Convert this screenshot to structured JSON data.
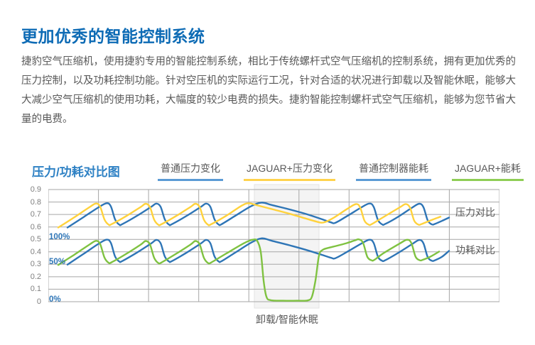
{
  "theme": {
    "heading_blue": "#0d6bb5",
    "chart_title_blue": "#2e81c4",
    "text_gray": "#595959",
    "tick_gray": "#7f7f7f",
    "pct_blue": "#2e75b6",
    "grid_gray": "#a6a6a6",
    "band_fill": "#f4f4f4",
    "band_border": "#e3e3e3"
  },
  "header": {
    "title": "更加优秀的智能控制系统"
  },
  "intro": {
    "text": "捷豹空气压缩机，使用捷豹专用的智能控制系统，相比于传统螺杆式空气压缩机的控制系统，拥有更加优秀的压力控制，以及功耗控制功能。针对空压机的实际运行工况，针对合适的状况进行卸载以及智能休眠，能够大大减少空气压缩机的使用功耗，大幅度的较少电费的损失。捷豹智能控制螺杆式空气压缩机，能够为您节省大量的电费。"
  },
  "chart": {
    "title": "压力/功耗对比图",
    "legend": [
      {
        "label": "普通压力变化",
        "color": "#5b9bd5"
      },
      {
        "label": "JAGUAR+压力变化",
        "color": "#ffd34d"
      },
      {
        "label": "普通控制器能耗",
        "color": "#5b9bd5"
      },
      {
        "label": "JAGUAR+能耗",
        "color": "#8fce55"
      }
    ]
  },
  "chart_data": {
    "type": "line",
    "title": "压力/功耗对比图",
    "grid": true,
    "y_axis": {
      "min": 0,
      "max": 0.9,
      "step": 0.1,
      "ticks": [
        "0.9",
        "0.8",
        "0.7",
        "0.6",
        "0.5",
        "0.4",
        "0.3",
        "0.2",
        "0.1",
        "0"
      ]
    },
    "x_gridline_count": 10,
    "pct_labels": [
      {
        "text": "100%",
        "value": 0.5
      },
      {
        "text": "50%",
        "value": 0.3
      },
      {
        "text": "0%",
        "value": 0
      }
    ],
    "group_labels": [
      {
        "text": "压力对比",
        "value": 0.72
      },
      {
        "text": "功耗对比",
        "value": 0.415
      }
    ],
    "band": {
      "label": "卸载/智能休眠",
      "x_from": 290,
      "x_to": 381
    },
    "series": [
      {
        "name": "普通压力变化",
        "color": "#2e75b6",
        "points": [
          [
            27,
            0.595
          ],
          [
            50,
            0.68
          ],
          [
            70,
            0.755
          ],
          [
            82,
            0.79
          ],
          [
            88,
            0.765
          ],
          [
            94,
            0.66
          ],
          [
            100,
            0.618
          ],
          [
            104,
            0.622
          ],
          [
            125,
            0.69
          ],
          [
            145,
            0.762
          ],
          [
            152,
            0.787
          ],
          [
            158,
            0.762
          ],
          [
            164,
            0.66
          ],
          [
            170,
            0.618
          ],
          [
            174,
            0.622
          ],
          [
            195,
            0.69
          ],
          [
            215,
            0.762
          ],
          [
            222,
            0.787
          ],
          [
            228,
            0.762
          ],
          [
            234,
            0.66
          ],
          [
            240,
            0.618
          ],
          [
            244,
            0.622
          ],
          [
            262,
            0.685
          ],
          [
            285,
            0.765
          ],
          [
            300,
            0.795
          ],
          [
            315,
            0.775
          ],
          [
            340,
            0.74
          ],
          [
            365,
            0.7
          ],
          [
            385,
            0.662
          ],
          [
            398,
            0.636
          ],
          [
            404,
            0.633
          ],
          [
            420,
            0.685
          ],
          [
            440,
            0.755
          ],
          [
            452,
            0.788
          ],
          [
            458,
            0.76
          ],
          [
            464,
            0.655
          ],
          [
            470,
            0.62
          ],
          [
            474,
            0.623
          ],
          [
            492,
            0.68
          ],
          [
            512,
            0.755
          ],
          [
            522,
            0.786
          ],
          [
            528,
            0.758
          ],
          [
            534,
            0.652
          ],
          [
            540,
            0.62
          ],
          [
            544,
            0.624
          ],
          [
            554,
            0.648
          ],
          [
            564,
            0.675
          ]
        ]
      },
      {
        "name": "JAGUAR+压力变化",
        "color": "#ffd23c",
        "points": [
          [
            14,
            0.595
          ],
          [
            36,
            0.675
          ],
          [
            57,
            0.755
          ],
          [
            67,
            0.788
          ],
          [
            73,
            0.762
          ],
          [
            79,
            0.66
          ],
          [
            85,
            0.618
          ],
          [
            89,
            0.622
          ],
          [
            110,
            0.688
          ],
          [
            130,
            0.76
          ],
          [
            137,
            0.786
          ],
          [
            143,
            0.76
          ],
          [
            149,
            0.658
          ],
          [
            155,
            0.617
          ],
          [
            159,
            0.621
          ],
          [
            180,
            0.688
          ],
          [
            200,
            0.76
          ],
          [
            207,
            0.786
          ],
          [
            213,
            0.76
          ],
          [
            219,
            0.658
          ],
          [
            225,
            0.617
          ],
          [
            229,
            0.621
          ],
          [
            250,
            0.688
          ],
          [
            272,
            0.77
          ],
          [
            282,
            0.79
          ],
          [
            295,
            0.772
          ],
          [
            318,
            0.738
          ],
          [
            342,
            0.702
          ],
          [
            362,
            0.668
          ],
          [
            378,
            0.642
          ],
          [
            387,
            0.635
          ],
          [
            400,
            0.668
          ],
          [
            420,
            0.742
          ],
          [
            433,
            0.783
          ],
          [
            439,
            0.755
          ],
          [
            445,
            0.65
          ],
          [
            451,
            0.618
          ],
          [
            455,
            0.622
          ],
          [
            472,
            0.68
          ],
          [
            495,
            0.758
          ],
          [
            503,
            0.784
          ],
          [
            509,
            0.756
          ],
          [
            515,
            0.65
          ],
          [
            521,
            0.618
          ],
          [
            525,
            0.622
          ],
          [
            538,
            0.652
          ],
          [
            552,
            0.682
          ]
        ]
      },
      {
        "name": "普通控制器能耗",
        "color": "#2e75b6",
        "points": [
          [
            27,
            0.298
          ],
          [
            50,
            0.385
          ],
          [
            70,
            0.462
          ],
          [
            82,
            0.498
          ],
          [
            88,
            0.472
          ],
          [
            94,
            0.362
          ],
          [
            100,
            0.322
          ],
          [
            104,
            0.326
          ],
          [
            125,
            0.395
          ],
          [
            145,
            0.468
          ],
          [
            152,
            0.496
          ],
          [
            158,
            0.47
          ],
          [
            164,
            0.362
          ],
          [
            170,
            0.322
          ],
          [
            174,
            0.326
          ],
          [
            195,
            0.395
          ],
          [
            215,
            0.468
          ],
          [
            222,
            0.496
          ],
          [
            228,
            0.47
          ],
          [
            234,
            0.362
          ],
          [
            240,
            0.322
          ],
          [
            244,
            0.326
          ],
          [
            262,
            0.39
          ],
          [
            285,
            0.472
          ],
          [
            300,
            0.508
          ],
          [
            315,
            0.488
          ],
          [
            340,
            0.452
          ],
          [
            365,
            0.412
          ],
          [
            385,
            0.376
          ],
          [
            398,
            0.352
          ],
          [
            404,
            0.349
          ],
          [
            420,
            0.398
          ],
          [
            440,
            0.465
          ],
          [
            452,
            0.497
          ],
          [
            458,
            0.47
          ],
          [
            464,
            0.36
          ],
          [
            470,
            0.328
          ],
          [
            474,
            0.332
          ],
          [
            492,
            0.39
          ],
          [
            512,
            0.462
          ],
          [
            522,
            0.495
          ],
          [
            528,
            0.468
          ],
          [
            534,
            0.358
          ],
          [
            540,
            0.328
          ],
          [
            544,
            0.332
          ],
          [
            554,
            0.36
          ],
          [
            564,
            0.408
          ]
        ]
      },
      {
        "name": "JAGUAR+能耗",
        "color": "#7fc241",
        "points": [
          [
            14,
            0.295
          ],
          [
            36,
            0.375
          ],
          [
            57,
            0.455
          ],
          [
            67,
            0.488
          ],
          [
            73,
            0.462
          ],
          [
            79,
            0.355
          ],
          [
            85,
            0.312
          ],
          [
            89,
            0.316
          ],
          [
            110,
            0.385
          ],
          [
            130,
            0.458
          ],
          [
            137,
            0.487
          ],
          [
            143,
            0.46
          ],
          [
            149,
            0.352
          ],
          [
            155,
            0.31
          ],
          [
            159,
            0.314
          ],
          [
            180,
            0.385
          ],
          [
            200,
            0.458
          ],
          [
            207,
            0.487
          ],
          [
            213,
            0.46
          ],
          [
            219,
            0.352
          ],
          [
            225,
            0.31
          ],
          [
            229,
            0.314
          ],
          [
            250,
            0.385
          ],
          [
            275,
            0.468
          ],
          [
            288,
            0.498
          ],
          [
            294,
            0.488
          ],
          [
            299,
            0.4
          ],
          [
            303,
            0.17
          ],
          [
            307,
            0.04
          ],
          [
            313,
            0.012
          ],
          [
            330,
            0.008
          ],
          [
            350,
            0.008
          ],
          [
            365,
            0.01
          ],
          [
            371,
            0.04
          ],
          [
            376,
            0.17
          ],
          [
            381,
            0.37
          ],
          [
            386,
            0.415
          ],
          [
            394,
            0.432
          ],
          [
            405,
            0.447
          ],
          [
            420,
            0.47
          ],
          [
            432,
            0.493
          ],
          [
            437,
            0.5
          ],
          [
            443,
            0.472
          ],
          [
            449,
            0.36
          ],
          [
            455,
            0.332
          ],
          [
            459,
            0.336
          ],
          [
            472,
            0.39
          ],
          [
            495,
            0.468
          ],
          [
            505,
            0.497
          ],
          [
            511,
            0.47
          ],
          [
            517,
            0.36
          ],
          [
            523,
            0.332
          ],
          [
            527,
            0.336
          ],
          [
            538,
            0.362
          ],
          [
            550,
            0.402
          ]
        ]
      }
    ]
  }
}
